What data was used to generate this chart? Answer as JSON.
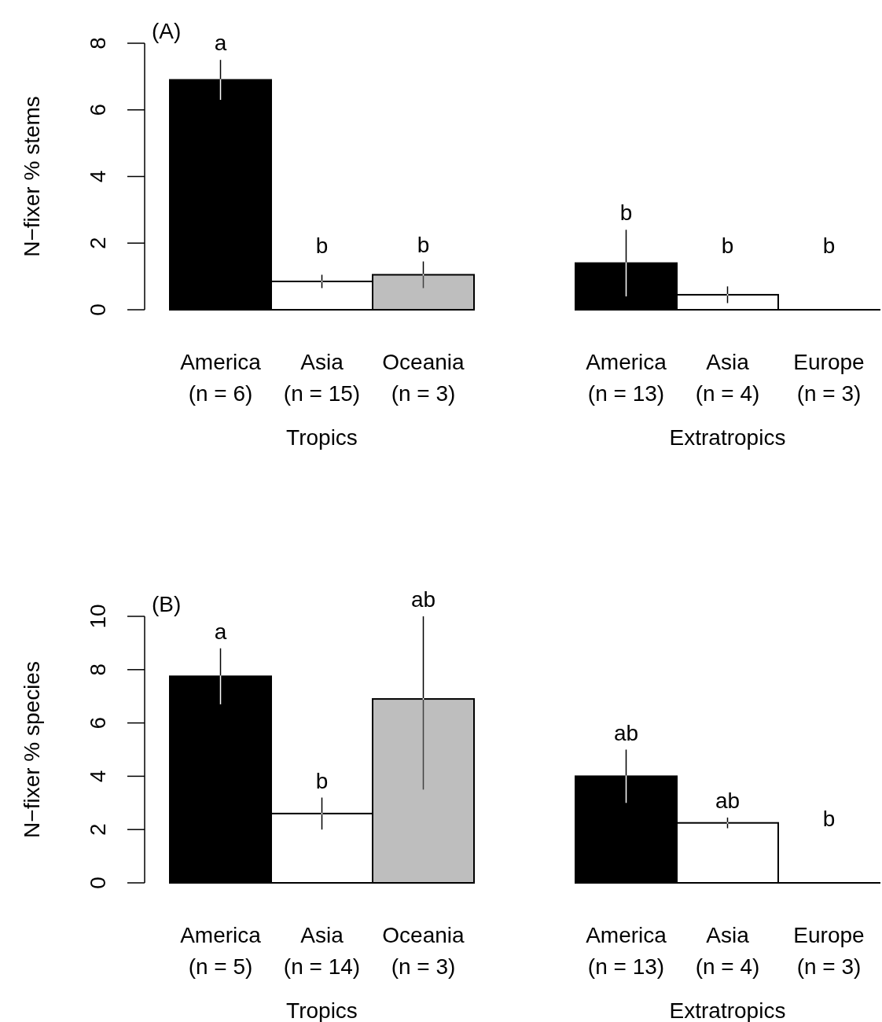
{
  "chart_data": [
    {
      "type": "bar",
      "title": "(A)",
      "ylabel": "N−fixer % stems",
      "categories": [
        "America\n(n = 6)",
        "Asia\n(n = 15)",
        "Oceania\n(n = 3)",
        null,
        "America\n(n = 13)",
        "Asia\n(n = 4)",
        "Europe\n(n = 3)"
      ],
      "values": [
        6.9,
        0.85,
        1.05,
        null,
        1.4,
        0.45,
        0
      ],
      "errors": [
        0.6,
        0.2,
        0.4,
        null,
        [
          0.4,
          2.4
        ],
        0.25,
        null
      ],
      "colors": [
        "#000000",
        "#ffffff",
        "#bebebe",
        null,
        "#000000",
        "#ffffff",
        "#ffffff"
      ],
      "ylim": [
        0,
        8
      ],
      "yticks": [
        0,
        2,
        4,
        6,
        8
      ],
      "grid": false,
      "annotations": [
        "Tropics",
        "Extratropics",
        "a",
        "b",
        "b",
        "b",
        "b",
        "b"
      ]
    },
    {
      "type": "bar",
      "title": "(B)",
      "ylabel": "N−fixer % species",
      "categories": [
        "America\n(n = 5)",
        "Asia\n(n = 14)",
        "Oceania\n(n = 3)",
        null,
        "America\n(n = 13)",
        "Asia\n(n = 4)",
        "Europe\n(n = 3)"
      ],
      "values": [
        7.75,
        2.6,
        6.9,
        null,
        4.0,
        2.25,
        0
      ],
      "errors": [
        [
          6.7,
          8.8
        ],
        [
          2.0,
          3.2
        ],
        [
          3.5,
          10.0
        ],
        null,
        1.0,
        0.2,
        null
      ],
      "colors": [
        "#000000",
        "#ffffff",
        "#bebebe",
        null,
        "#000000",
        "#ffffff",
        "#ffffff"
      ],
      "ylim": [
        0,
        10
      ],
      "yticks": [
        0,
        2,
        4,
        6,
        8,
        10
      ],
      "grid": false,
      "annotations": [
        "Tropics",
        "Extratropics",
        "a",
        "b",
        "ab",
        "ab",
        "ab",
        "b"
      ]
    }
  ]
}
